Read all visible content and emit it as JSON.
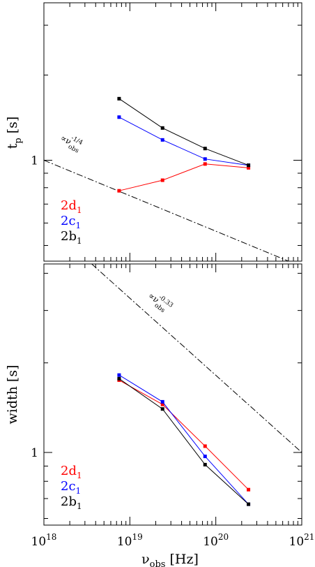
{
  "chart_data": [
    {
      "type": "line",
      "ylabel": "t",
      "ylabel_sub": "p",
      "ylabel_unit": "[s]",
      "xscale": "log",
      "yscale": "log",
      "xlim": [
        1e+18,
        1e+21
      ],
      "ylim": [
        0.44,
        3.6
      ],
      "ytick_labels": [
        {
          "value": 1,
          "label": "1"
        }
      ],
      "series": [
        {
          "name": "2d",
          "sub": "1",
          "color": "#ff0000",
          "x": [
            7.5e+18,
            2.4e+19,
            7.5e+19,
            2.4e+20
          ],
          "y": [
            0.78,
            0.85,
            0.97,
            0.94
          ]
        },
        {
          "name": "2c",
          "sub": "1",
          "color": "#0000ff",
          "x": [
            7.5e+18,
            2.4e+19,
            7.5e+19,
            2.4e+20
          ],
          "y": [
            1.42,
            1.18,
            1.01,
            0.96
          ]
        },
        {
          "name": "2b",
          "sub": "1",
          "color": "#000000",
          "x": [
            7.5e+18,
            2.4e+19,
            7.5e+19,
            2.4e+20
          ],
          "y": [
            1.65,
            1.3,
            1.1,
            0.96
          ]
        }
      ],
      "reference_line": {
        "x": [
          1e+18,
          7e+20
        ],
        "y": [
          1.0,
          0.44
        ],
        "label": "∝ν",
        "label_sub": "obs",
        "label_sup": "-1/4"
      }
    },
    {
      "type": "line",
      "xlabel": "ν",
      "xlabel_sub": "obs",
      "xlabel_unit": "[Hz]",
      "ylabel": "width [s]",
      "xscale": "log",
      "yscale": "log",
      "xlim": [
        1e+18,
        1e+21
      ],
      "ylim": [
        0.57,
        4.3
      ],
      "xtick_labels": [
        {
          "value": 1e+18,
          "base": "10",
          "exp": "18"
        },
        {
          "value": 1e+19,
          "base": "10",
          "exp": "19"
        },
        {
          "value": 1e+20,
          "base": "10",
          "exp": "20"
        },
        {
          "value": 1e+21,
          "base": "10",
          "exp": "21"
        }
      ],
      "ytick_labels": [
        {
          "value": 1,
          "label": "1"
        }
      ],
      "series": [
        {
          "name": "2d",
          "sub": "1",
          "color": "#ff0000",
          "x": [
            7.5e+18,
            2.4e+19,
            7.5e+19,
            2.4e+20
          ],
          "y": [
            1.75,
            1.45,
            1.05,
            0.75
          ]
        },
        {
          "name": "2c",
          "sub": "1",
          "color": "#0000ff",
          "x": [
            7.5e+18,
            2.4e+19,
            7.5e+19,
            2.4e+20
          ],
          "y": [
            1.82,
            1.48,
            0.97,
            0.67
          ]
        },
        {
          "name": "2b",
          "sub": "1",
          "color": "#000000",
          "x": [
            7.5e+18,
            2.4e+19,
            7.5e+19,
            2.4e+20
          ],
          "y": [
            1.77,
            1.4,
            0.91,
            0.67
          ]
        }
      ],
      "reference_line": {
        "x": [
          3.6e+18,
          1e+21
        ],
        "y": [
          4.3,
          1.0
        ],
        "label": "∝ν",
        "label_sub": "obs",
        "label_sup": "-0.33"
      }
    }
  ]
}
